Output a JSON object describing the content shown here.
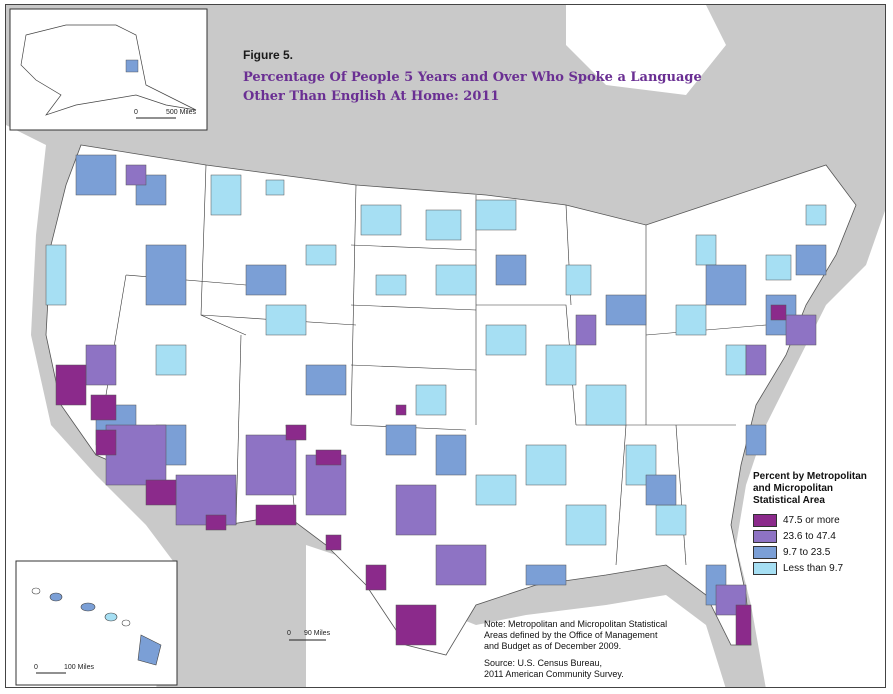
{
  "figure": {
    "label": "Figure 5.",
    "title_lines": [
      "Percentage Of People 5 Years and Over Who Spoke a Language",
      "Other Than English At Home: 2011"
    ]
  },
  "legend": {
    "title_lines": [
      "Percent by Metropolitan",
      "and Micropolitan",
      "Statistical Area"
    ],
    "classes": [
      {
        "label": "47.5 or more",
        "color": "#8b2a8b"
      },
      {
        "label": "23.6 to 47.4",
        "color": "#8e73c4"
      },
      {
        "label": "9.7 to 23.5",
        "color": "#7b9fd6"
      },
      {
        "label": "Less than 9.7",
        "color": "#a6dff3"
      }
    ]
  },
  "note": {
    "lines": [
      "Note: Metropolitan and Micropolitan Statistical",
      "Areas defined by the Office of Management",
      "and Budget as of December 2009."
    ],
    "source_lines": [
      "Source: U.S. Census Bureau,",
      "2011 American Community Survey."
    ]
  },
  "scales": {
    "conus": {
      "zero": "0",
      "distance": "90 Miles"
    },
    "alaska": {
      "zero": "0",
      "distance": "500 Miles"
    },
    "hawaii": {
      "zero": "0",
      "distance": "100 Miles"
    }
  },
  "colors": {
    "background_land": "#c9c9c9",
    "water": "#ffffff",
    "nodata": "#ffffff"
  }
}
